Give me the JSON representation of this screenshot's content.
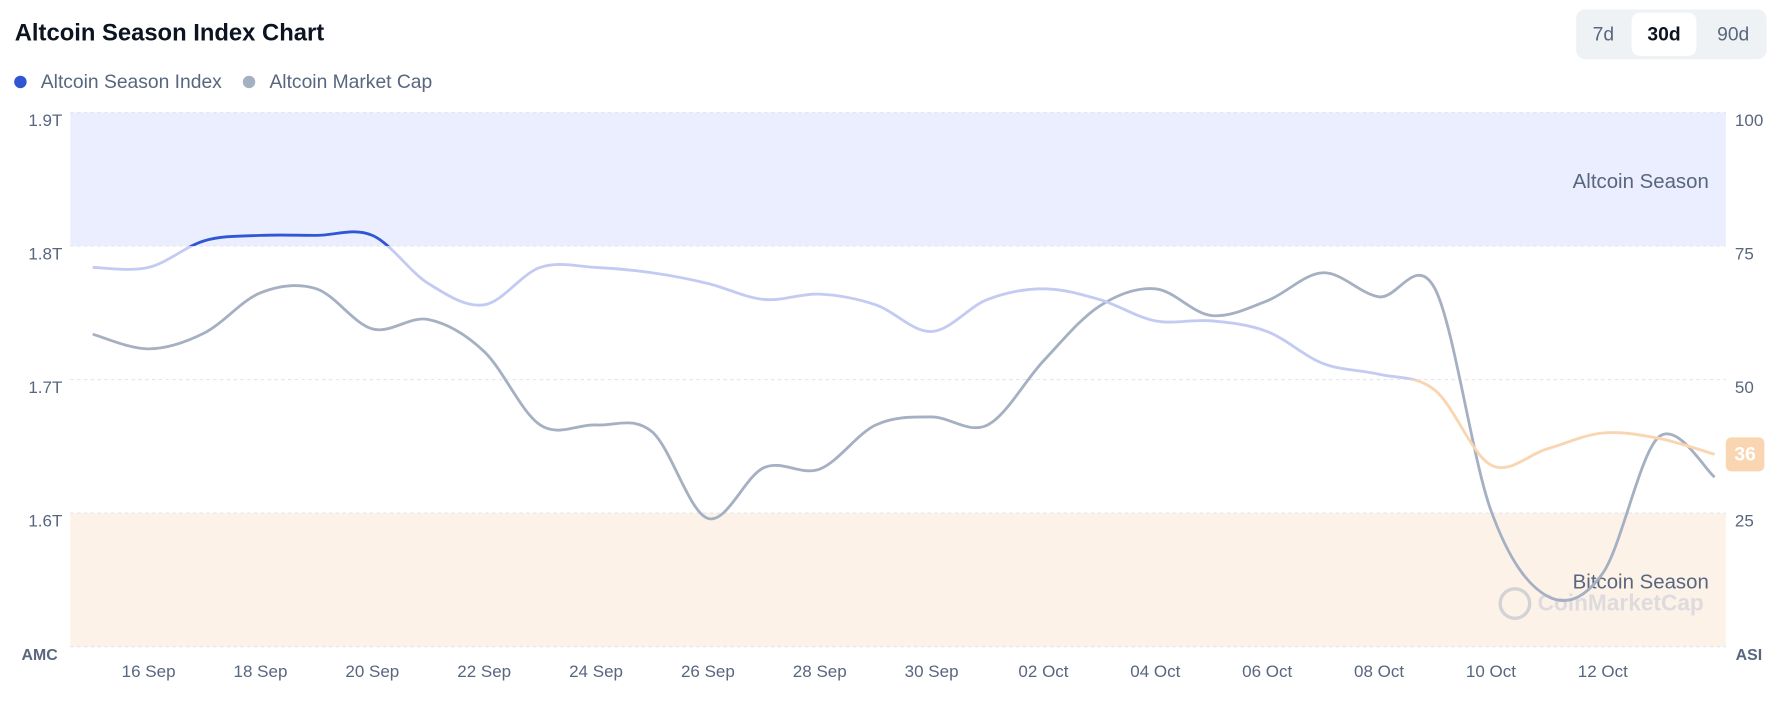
{
  "chart_data": {
    "type": "line",
    "title": "Altcoin Season Index Chart",
    "range_buttons": [
      "7d",
      "30d",
      "90d"
    ],
    "selected_range": "30d",
    "y_label": "AMC",
    "y2_label": "ASI",
    "watermark": "CoinMarketCap",
    "categories": [
      null,
      "16 Sep",
      null,
      "18 Sep",
      null,
      "20 Sep",
      null,
      "22 Sep",
      null,
      "24 Sep",
      null,
      "26 Sep",
      null,
      "28 Sep",
      null,
      "30 Sep",
      null,
      "02 Oct",
      null,
      "04 Oct",
      null,
      "06 Oct",
      null,
      "08 Oct",
      null,
      "10 Oct",
      null,
      "12 Oct",
      null,
      null
    ],
    "series": [
      {
        "name": "Altcoin Season Index",
        "color": "#3056d3",
        "mid_color": "#c3cbf3",
        "low_color": "#f9d5b1",
        "axis": "y2",
        "values": [
          71,
          71,
          76,
          77,
          77,
          77,
          68,
          64,
          71,
          71,
          70,
          68,
          65,
          66,
          64,
          59,
          65,
          67,
          65,
          61,
          61,
          59,
          53,
          51,
          48,
          34,
          37,
          40,
          39,
          36
        ]
      },
      {
        "name": "Altcoin Market Cap",
        "color": "#a6b0c3",
        "values": [
          1.734,
          1.723,
          1.735,
          1.765,
          1.768,
          1.738,
          1.745,
          1.721,
          1.666,
          1.666,
          1.661,
          1.596,
          1.634,
          1.633,
          1.666,
          1.672,
          1.666,
          1.714,
          1.755,
          1.768,
          1.748,
          1.759,
          1.78,
          1.762,
          1.768,
          1.602,
          1.538,
          1.555,
          1.657,
          1.627
        ]
      }
    ],
    "ylim": [
      1.5,
      1.9
    ],
    "yticks": [
      {
        "value": 1.6,
        "label": "1.6T"
      },
      {
        "value": 1.7,
        "label": "1.7T"
      },
      {
        "value": 1.8,
        "label": "1.8T"
      },
      {
        "value": 1.9,
        "label": "1.9T"
      }
    ],
    "y2lim": [
      0,
      100
    ],
    "y2ticks": [
      25,
      50,
      75,
      100
    ],
    "bands": [
      {
        "label": "Altcoin Season",
        "from": 75,
        "to": 100,
        "color": "#ebeefe"
      },
      {
        "label": "Bitcoin Season",
        "from": 0,
        "to": 25,
        "color": "#fdf2e8"
      }
    ],
    "grid": true
  }
}
